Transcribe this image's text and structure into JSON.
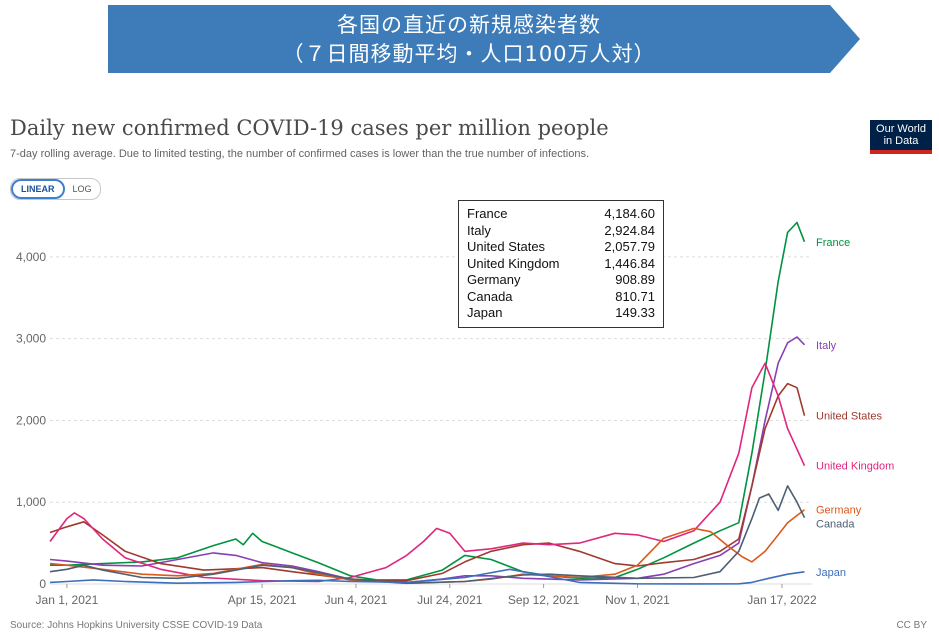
{
  "banner": {
    "line1": "各国の直近の新規感染者数",
    "line2": "（７日間移動平均・人口100万人対）",
    "color": "#3d7cb8"
  },
  "title": "Daily new confirmed COVID-19 cases per million people",
  "subtitle": "7-day rolling average. Due to limited testing, the number of confirmed cases is lower than the true number of infections.",
  "logo": {
    "line1": "Our World",
    "line2": "in Data"
  },
  "scale_toggle": {
    "linear": "LINEAR",
    "log": "LOG",
    "selected": "LINEAR"
  },
  "source": "Source: Johns Hopkins University CSSE COVID-19 Data",
  "license": "CC BY",
  "tooltip": [
    {
      "country": "France",
      "value": "4,184.60"
    },
    {
      "country": "Italy",
      "value": "2,924.84"
    },
    {
      "country": "United States",
      "value": "2,057.79"
    },
    {
      "country": "United Kingdom",
      "value": "1,446.84"
    },
    {
      "country": "Germany",
      "value": "908.89"
    },
    {
      "country": "Canada",
      "value": "810.71"
    },
    {
      "country": "Japan",
      "value": "149.33"
    }
  ],
  "chart_data": {
    "type": "line",
    "x_tick_labels": [
      "Jan 1, 2021",
      "Apr 15, 2021",
      "Jun 4, 2021",
      "Jul 24, 2021",
      "Sep 12, 2021",
      "Nov 1, 2021",
      "Jan 17, 2022"
    ],
    "y_ticks": [
      0,
      1000,
      2000,
      3000,
      4000
    ],
    "y_tick_labels": [
      "0",
      "1,000",
      "2,000",
      "3,000",
      "4,000"
    ],
    "ylim": [
      0,
      4500
    ],
    "xlim": [
      "2020-12-23",
      "2022-02-02"
    ],
    "grid": true,
    "series": [
      {
        "name": "France",
        "color": "#00933f",
        "dates": [
          "2020-12-23",
          "2021-01-01",
          "2021-01-20",
          "2021-02-10",
          "2021-03-01",
          "2021-03-20",
          "2021-04-01",
          "2021-04-05",
          "2021-04-10",
          "2021-04-15",
          "2021-04-22",
          "2021-05-01",
          "2021-05-15",
          "2021-06-01",
          "2021-06-15",
          "2021-07-01",
          "2021-07-20",
          "2021-08-01",
          "2021-08-15",
          "2021-09-01",
          "2021-09-15",
          "2021-10-01",
          "2021-10-20",
          "2021-11-01",
          "2021-11-15",
          "2021-12-01",
          "2021-12-15",
          "2021-12-25",
          "2022-01-01",
          "2022-01-08",
          "2022-01-15",
          "2022-01-20",
          "2022-01-25",
          "2022-01-29"
        ],
        "values": [
          230,
          230,
          250,
          270,
          320,
          470,
          550,
          480,
          620,
          520,
          460,
          380,
          260,
          100,
          50,
          50,
          170,
          350,
          300,
          150,
          100,
          70,
          80,
          180,
          320,
          500,
          650,
          750,
          1600,
          2600,
          3700,
          4300,
          4420,
          4185
        ]
      },
      {
        "name": "Italy",
        "color": "#883fb5",
        "dates": [
          "2020-12-23",
          "2021-01-01",
          "2021-01-20",
          "2021-02-10",
          "2021-03-01",
          "2021-03-20",
          "2021-04-01",
          "2021-04-15",
          "2021-05-01",
          "2021-05-15",
          "2021-06-01",
          "2021-07-01",
          "2021-07-20",
          "2021-08-01",
          "2021-08-15",
          "2021-09-01",
          "2021-10-01",
          "2021-11-01",
          "2021-11-15",
          "2021-12-01",
          "2021-12-15",
          "2021-12-25",
          "2022-01-01",
          "2022-01-08",
          "2022-01-15",
          "2022-01-20",
          "2022-01-25",
          "2022-01-29"
        ],
        "values": [
          300,
          280,
          230,
          220,
          300,
          380,
          350,
          260,
          220,
          150,
          60,
          20,
          60,
          100,
          100,
          70,
          50,
          70,
          120,
          250,
          350,
          500,
          1200,
          2000,
          2700,
          2950,
          3020,
          2925
        ]
      },
      {
        "name": "United States",
        "color": "#a03a30",
        "dates": [
          "2020-12-23",
          "2021-01-01",
          "2021-01-10",
          "2021-01-20",
          "2021-02-01",
          "2021-02-20",
          "2021-03-15",
          "2021-04-15",
          "2021-05-01",
          "2021-06-01",
          "2021-06-20",
          "2021-07-01",
          "2021-07-20",
          "2021-08-01",
          "2021-08-15",
          "2021-09-01",
          "2021-09-15",
          "2021-10-01",
          "2021-10-20",
          "2021-11-01",
          "2021-11-15",
          "2021-12-01",
          "2021-12-15",
          "2021-12-25",
          "2022-01-01",
          "2022-01-08",
          "2022-01-15",
          "2022-01-20",
          "2022-01-25",
          "2022-01-29"
        ],
        "values": [
          630,
          700,
          760,
          600,
          400,
          250,
          170,
          200,
          150,
          60,
          35,
          40,
          130,
          270,
          400,
          480,
          500,
          400,
          250,
          220,
          260,
          300,
          400,
          550,
          1200,
          1900,
          2300,
          2450,
          2400,
          2058
        ]
      },
      {
        "name": "United Kingdom",
        "color": "#e0267d",
        "dates": [
          "2020-12-23",
          "2021-01-01",
          "2021-01-05",
          "2021-01-10",
          "2021-01-20",
          "2021-02-01",
          "2021-02-20",
          "2021-03-15",
          "2021-04-15",
          "2021-05-15",
          "2021-06-01",
          "2021-06-20",
          "2021-07-01",
          "2021-07-10",
          "2021-07-17",
          "2021-07-24",
          "2021-08-01",
          "2021-08-15",
          "2021-09-01",
          "2021-09-15",
          "2021-10-01",
          "2021-10-20",
          "2021-11-01",
          "2021-11-15",
          "2021-12-01",
          "2021-12-15",
          "2021-12-25",
          "2022-01-01",
          "2022-01-08",
          "2022-01-15",
          "2022-01-20",
          "2022-01-29"
        ],
        "values": [
          520,
          800,
          870,
          800,
          550,
          320,
          180,
          80,
          40,
          30,
          80,
          200,
          350,
          520,
          680,
          620,
          400,
          430,
          500,
          480,
          500,
          620,
          600,
          520,
          650,
          1000,
          1600,
          2400,
          2700,
          2300,
          1900,
          1447
        ]
      },
      {
        "name": "Germany",
        "color": "#d95a1e",
        "dates": [
          "2020-12-23",
          "2021-01-01",
          "2021-01-20",
          "2021-02-10",
          "2021-03-01",
          "2021-03-20",
          "2021-04-15",
          "2021-05-01",
          "2021-05-15",
          "2021-06-01",
          "2021-07-01",
          "2021-08-01",
          "2021-08-15",
          "2021-09-01",
          "2021-09-15",
          "2021-10-01",
          "2021-10-20",
          "2021-11-01",
          "2021-11-15",
          "2021-12-01",
          "2021-12-10",
          "2021-12-20",
          "2021-12-27",
          "2022-01-01",
          "2022-01-08",
          "2022-01-15",
          "2022-01-20",
          "2022-01-29"
        ],
        "values": [
          250,
          230,
          180,
          120,
          100,
          130,
          240,
          200,
          120,
          50,
          8,
          30,
          60,
          120,
          100,
          80,
          120,
          230,
          560,
          680,
          640,
          450,
          330,
          270,
          400,
          600,
          750,
          909
        ]
      },
      {
        "name": "Canada",
        "color": "#4c5f73",
        "dates": [
          "2020-12-23",
          "2021-01-01",
          "2021-01-10",
          "2021-01-20",
          "2021-02-10",
          "2021-03-01",
          "2021-03-20",
          "2021-04-15",
          "2021-05-01",
          "2021-05-15",
          "2021-06-01",
          "2021-07-01",
          "2021-08-01",
          "2021-09-01",
          "2021-09-15",
          "2021-10-01",
          "2021-11-01",
          "2021-12-01",
          "2021-12-15",
          "2021-12-25",
          "2022-01-01",
          "2022-01-05",
          "2022-01-10",
          "2022-01-15",
          "2022-01-20",
          "2022-01-25",
          "2022-01-29"
        ],
        "values": [
          150,
          180,
          230,
          170,
          80,
          70,
          120,
          230,
          200,
          140,
          60,
          10,
          30,
          110,
          120,
          100,
          70,
          80,
          150,
          400,
          800,
          1050,
          1100,
          900,
          1200,
          1000,
          811
        ]
      },
      {
        "name": "Japan",
        "color": "#3c6fbb",
        "dates": [
          "2020-12-23",
          "2021-01-01",
          "2021-01-15",
          "2021-02-01",
          "2021-03-01",
          "2021-04-01",
          "2021-05-01",
          "2021-05-15",
          "2021-06-01",
          "2021-07-01",
          "2021-08-01",
          "2021-08-25",
          "2021-09-15",
          "2021-10-01",
          "2021-11-01",
          "2021-12-01",
          "2021-12-25",
          "2022-01-01",
          "2022-01-10",
          "2022-01-20",
          "2022-01-29"
        ],
        "values": [
          20,
          30,
          50,
          30,
          10,
          20,
          40,
          45,
          30,
          20,
          80,
          180,
          90,
          20,
          3,
          1,
          3,
          20,
          70,
          120,
          149
        ]
      }
    ]
  }
}
